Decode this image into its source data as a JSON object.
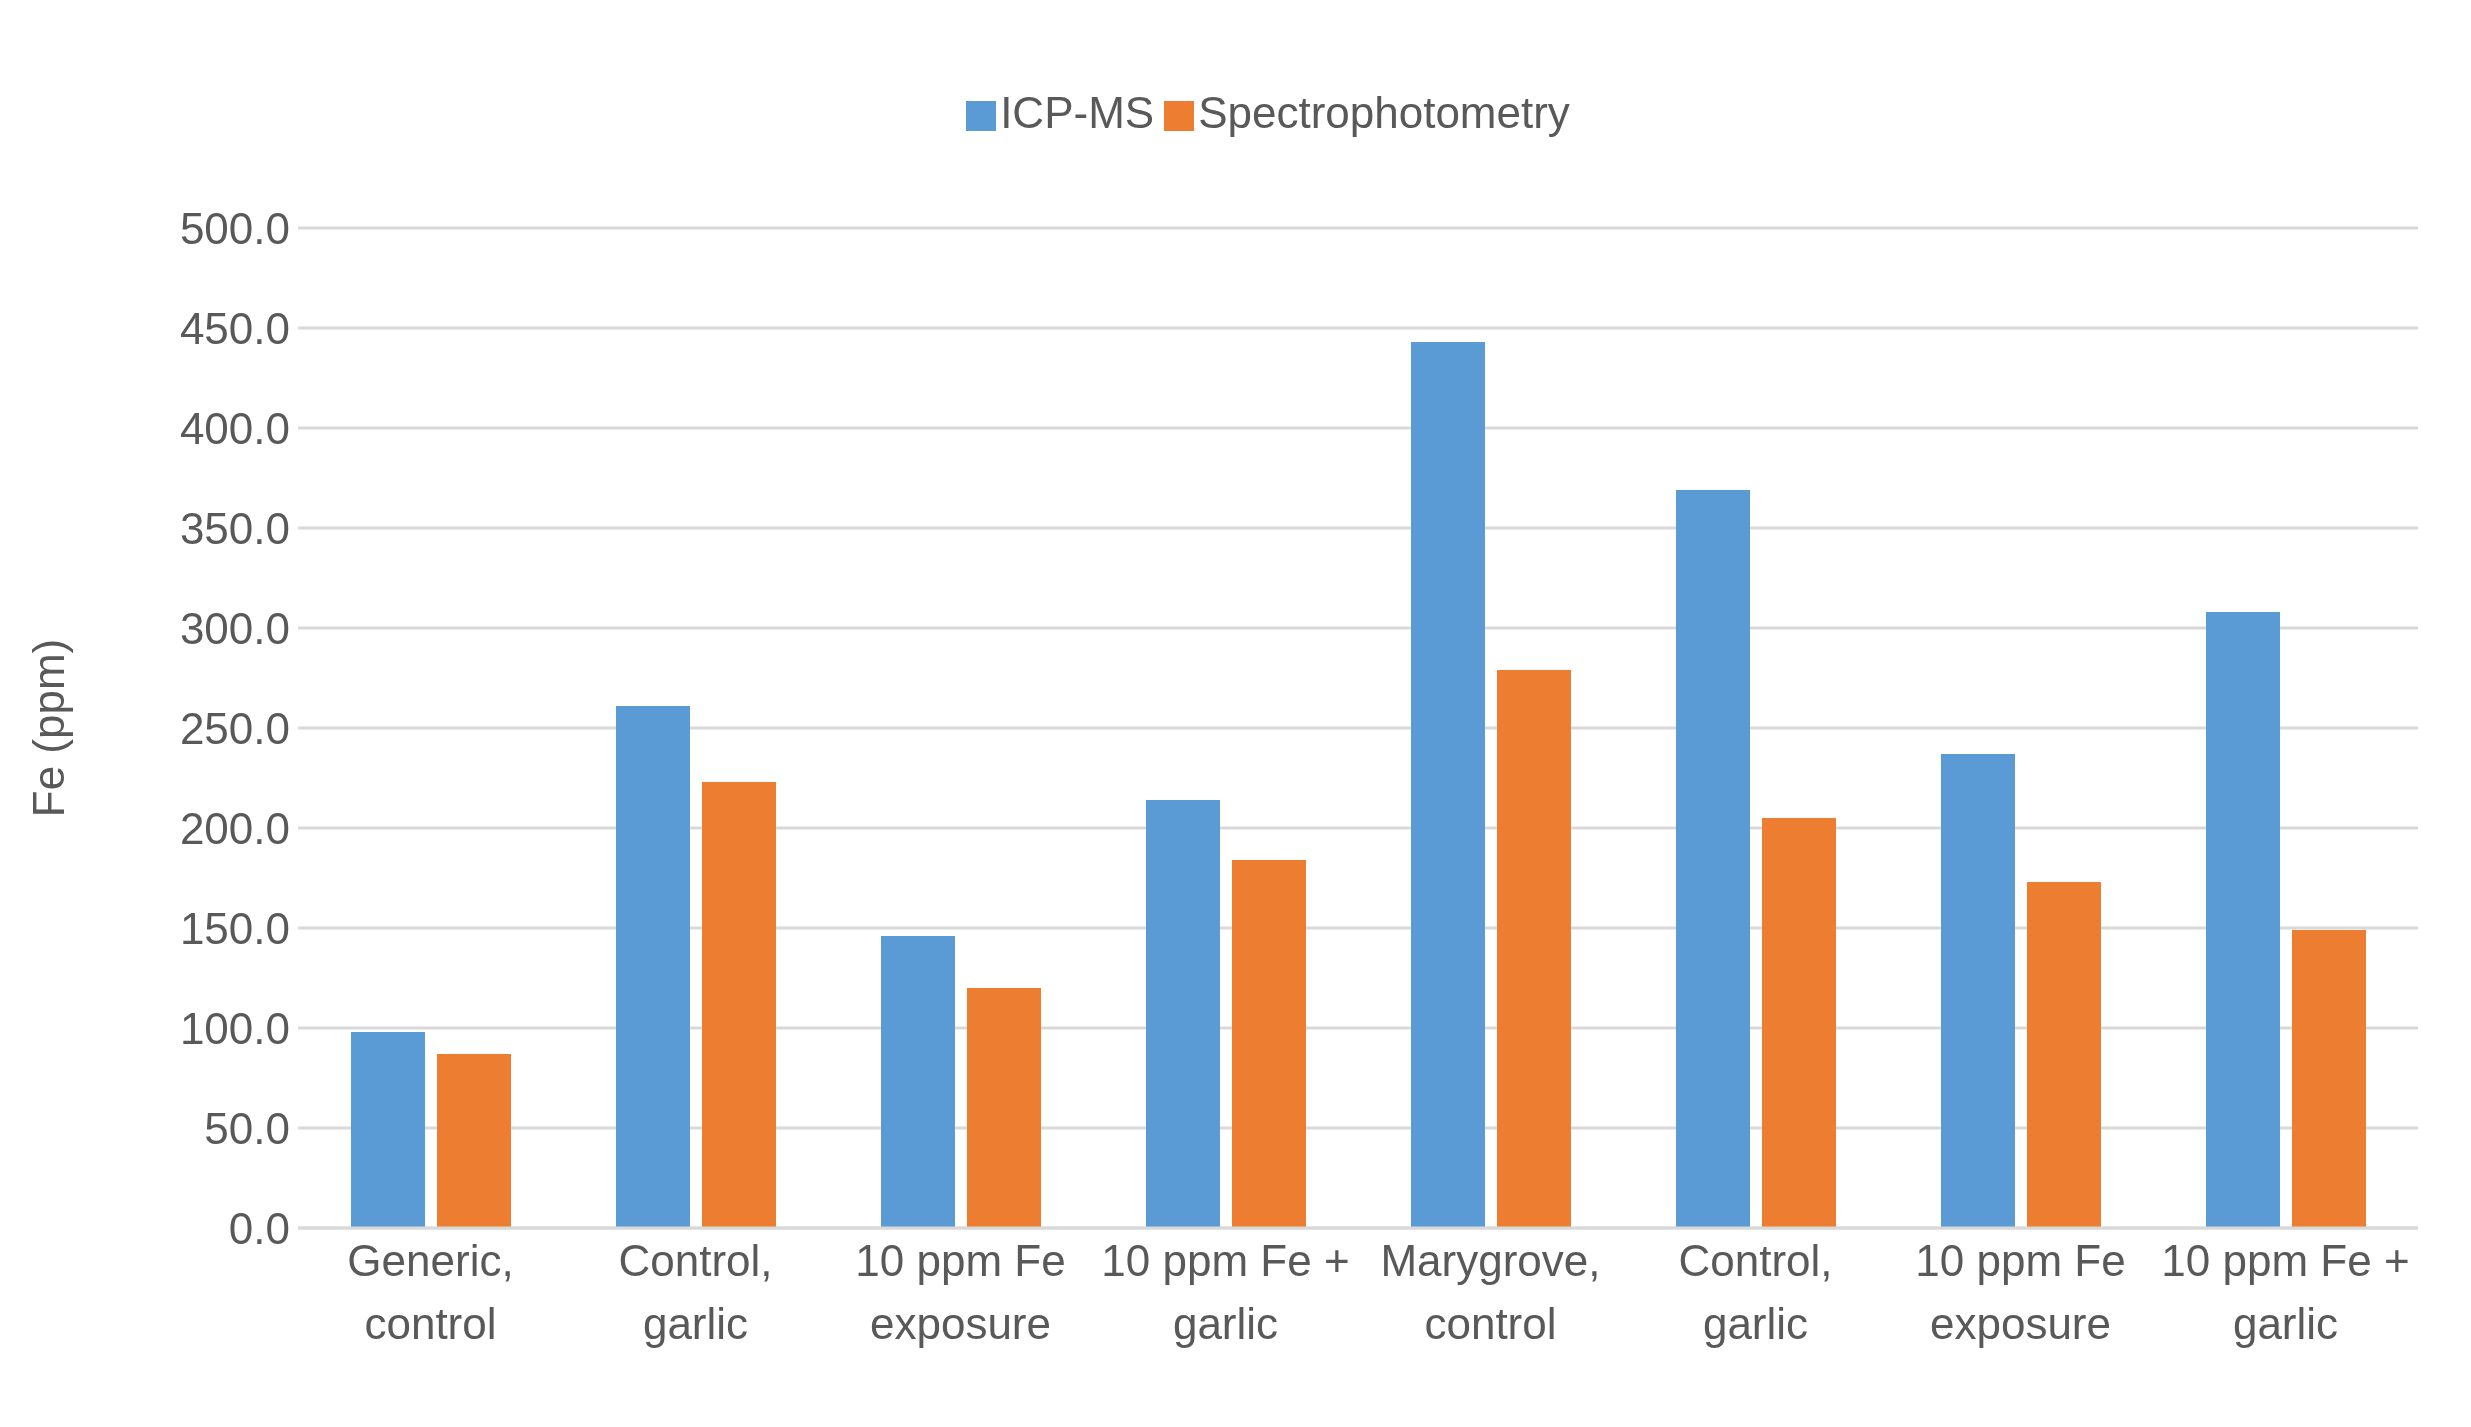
{
  "chart_data": {
    "type": "bar",
    "ylabel": "Fe (ppm)",
    "categories": [
      "Generic, control",
      "Control, garlic",
      "10 ppm Fe exposure",
      "10 ppm Fe + garlic",
      "Marygrove, control",
      "Control, garlic",
      "10 ppm Fe exposure",
      "10 ppm Fe + garlic"
    ],
    "series": [
      {
        "name": "ICP-MS",
        "color": "#5b9bd5",
        "values": [
          98,
          261,
          146,
          214,
          443,
          369,
          237,
          308
        ]
      },
      {
        "name": "Spectrophotometry",
        "color": "#ed7d31",
        "values": [
          87,
          223,
          120,
          184,
          279,
          205,
          173,
          149
        ]
      }
    ],
    "ylim": [
      0,
      500
    ],
    "yticks": [
      {
        "value": 0,
        "label": "0.0"
      },
      {
        "value": 50,
        "label": "50.0"
      },
      {
        "value": 100,
        "label": "100.0"
      },
      {
        "value": 150,
        "label": "150.0"
      },
      {
        "value": 200,
        "label": "200.0"
      },
      {
        "value": 250,
        "label": "250.0"
      },
      {
        "value": 300,
        "label": "300.0"
      },
      {
        "value": 350,
        "label": "350.0"
      },
      {
        "value": 400,
        "label": "400.0"
      },
      {
        "value": 450,
        "label": "450.0"
      },
      {
        "value": 500,
        "label": "500.0"
      }
    ],
    "grid": "y",
    "legend": "top"
  }
}
